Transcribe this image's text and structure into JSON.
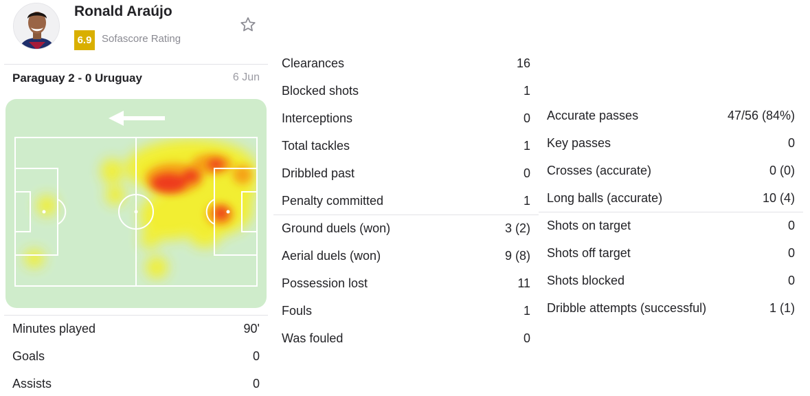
{
  "player": {
    "name": "Ronald Araújo",
    "rating": "6.9",
    "rating_label": "Sofascore Rating"
  },
  "match": {
    "title": "Paraguay 2 - 0 Uruguay",
    "date": "6 Jun"
  },
  "colors": {
    "rating_badge": "#d9af00",
    "pitch": "#cfeccb",
    "pitch_lines": "#ffffff"
  },
  "summary_stats": [
    {
      "label": "Minutes played",
      "value": "90'"
    },
    {
      "label": "Goals",
      "value": "0"
    },
    {
      "label": "Assists",
      "value": "0"
    }
  ],
  "defense_stats": [
    {
      "label": "Clearances",
      "value": "16"
    },
    {
      "label": "Blocked shots",
      "value": "1"
    },
    {
      "label": "Interceptions",
      "value": "0"
    },
    {
      "label": "Total tackles",
      "value": "1"
    },
    {
      "label": "Dribbled past",
      "value": "0"
    },
    {
      "label": "Penalty committed",
      "value": "1"
    }
  ],
  "duel_stats": [
    {
      "label": "Ground duels (won)",
      "value": "3 (2)"
    },
    {
      "label": "Aerial duels (won)",
      "value": "9 (8)"
    },
    {
      "label": "Possession lost",
      "value": "11"
    },
    {
      "label": "Fouls",
      "value": "1"
    },
    {
      "label": "Was fouled",
      "value": "0"
    }
  ],
  "passing_stats": [
    {
      "label": "Accurate passes",
      "value": "47/56 (84%)"
    },
    {
      "label": "Key passes",
      "value": "0"
    },
    {
      "label": "Crosses (accurate)",
      "value": "0 (0)"
    },
    {
      "label": "Long balls (accurate)",
      "value": "10 (4)"
    }
  ],
  "attack_stats": [
    {
      "label": "Shots on target",
      "value": "0"
    },
    {
      "label": "Shots off target",
      "value": "0"
    },
    {
      "label": "Shots blocked",
      "value": "0"
    },
    {
      "label": "Dribble attempts (successful)",
      "value": "1 (1)"
    }
  ],
  "icons": {
    "favorite": "star-outline-icon",
    "direction": "arrow-left-icon"
  }
}
